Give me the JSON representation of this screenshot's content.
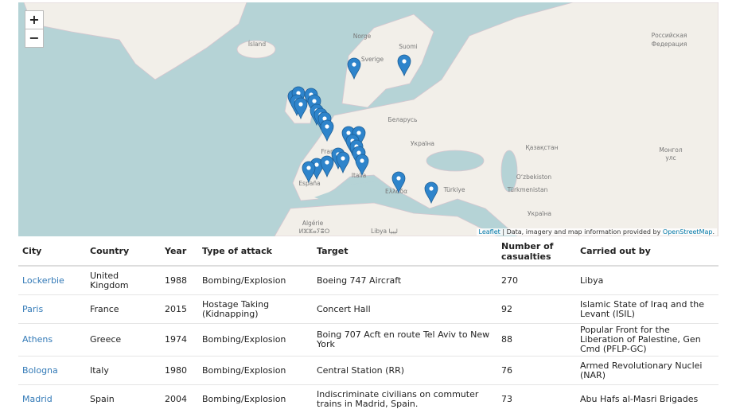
{
  "map": {
    "zoom_in": "+",
    "zoom_out": "−",
    "labels": [
      "Ísland",
      "Norge",
      "Sverige",
      "Suomi",
      "Российская",
      "Федерация",
      "Беларусь",
      "Україна",
      "Қазақстан",
      "Монгол",
      "улс",
      "Oʻzbekiston",
      "Türkmenistan",
      "France",
      "España",
      "Italia",
      "Ελλάδα",
      "Türkiye",
      "Algérie",
      "ⵍⵣⵣⴰⵢⴻⵔ",
      "Libya ليبيا",
      "Україна"
    ],
    "attribution": {
      "leaflet": "Leaflet",
      "text": "| Data, imagery and map information provided by",
      "osm": "OpenStreetMap",
      "end": "."
    }
  },
  "table": {
    "headers": [
      "City",
      "Country",
      "Year",
      "Type of attack",
      "Target",
      "Number of casualties",
      "Carried out by"
    ],
    "rows": [
      [
        "Lockerbie",
        "United Kingdom",
        "1988",
        "Bombing/Explosion",
        "Boeing 747 Aircraft",
        "270",
        "Libya"
      ],
      [
        "Paris",
        "France",
        "2015",
        "Hostage Taking (Kidnapping)",
        "Concert Hall",
        "92",
        "Islamic State of Iraq and the Levant (ISIL)"
      ],
      [
        "Athens",
        "Greece",
        "1974",
        "Bombing/Explosion",
        "Boing 707 Acft en route Tel Aviv to New York",
        "88",
        "Popular Front for the Liberation of Palestine, Gen Cmd (PFLP-GC)"
      ],
      [
        "Bologna",
        "Italy",
        "1980",
        "Bombing/Explosion",
        "Central Station (RR)",
        "76",
        "Armed Revolutionary Nuclei (NAR)"
      ],
      [
        "Madrid",
        "Spain",
        "2004",
        "Bombing/Explosion",
        "Indiscriminate civilians on commuter trains in Madrid, Spain.",
        "73",
        "Abu Hafs al-Masri Brigades"
      ]
    ]
  }
}
